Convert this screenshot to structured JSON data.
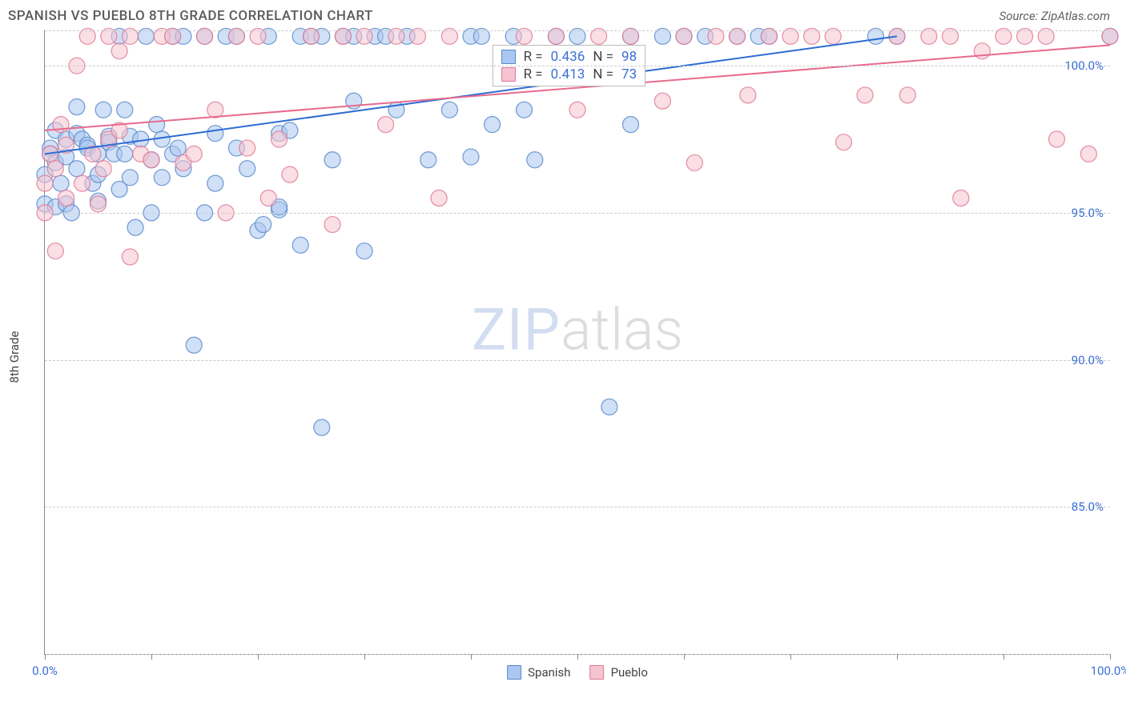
{
  "title": "SPANISH VS PUEBLO 8TH GRADE CORRELATION CHART",
  "source": "Source: ZipAtlas.com",
  "ylabel": "8th Grade",
  "watermark": {
    "part1": "ZIP",
    "part2": "atlas"
  },
  "chart": {
    "type": "scatter",
    "xlim": [
      0,
      100
    ],
    "ylim": [
      80,
      101.2
    ],
    "x_ticks": [
      0,
      10,
      20,
      30,
      40,
      50,
      60,
      70,
      80,
      90,
      100
    ],
    "x_tick_labels_shown": {
      "0": "0.0%",
      "100": "100.0%"
    },
    "y_gridlines": [
      80,
      85,
      90,
      95,
      100,
      101.2
    ],
    "y_tick_labels": {
      "85": "85.0%",
      "90": "90.0%",
      "95": "95.0%",
      "100": "100.0%"
    },
    "marker_radius": 10,
    "marker_opacity": 0.55,
    "marker_stroke_width": 1.3,
    "grid_color": "#cccccc",
    "axis_color": "#888888",
    "tick_label_color": "#3b6fd4",
    "background_color": "#ffffff",
    "series": [
      {
        "name": "Spanish",
        "color_fill": "#a9c7f0",
        "color_stroke": "#5a8ac9",
        "trend": {
          "x1": 0,
          "y1": 97.0,
          "x2": 80,
          "y2": 101.0,
          "color": "#2d6cd4",
          "width": 2
        },
        "stats": {
          "R": "0.436",
          "N": "98"
        },
        "points": [
          [
            0,
            95.3
          ],
          [
            0,
            96.3
          ],
          [
            0.5,
            97.2
          ],
          [
            0.5,
            97.0
          ],
          [
            1,
            95.2
          ],
          [
            1,
            96.7
          ],
          [
            1,
            97.8
          ],
          [
            1.5,
            96.0
          ],
          [
            2,
            97.5
          ],
          [
            2,
            96.9
          ],
          [
            2,
            95.3
          ],
          [
            2.5,
            95.0
          ],
          [
            3,
            97.7
          ],
          [
            3,
            98.6
          ],
          [
            3,
            96.5
          ],
          [
            3.5,
            97.5
          ],
          [
            4,
            97.3
          ],
          [
            4,
            97.2
          ],
          [
            4.5,
            96.0
          ],
          [
            5,
            95.4
          ],
          [
            5,
            96.3
          ],
          [
            5,
            97.0
          ],
          [
            5.5,
            98.5
          ],
          [
            6,
            97.6
          ],
          [
            6,
            97.4
          ],
          [
            6.5,
            97.0
          ],
          [
            7,
            101.0
          ],
          [
            7,
            95.8
          ],
          [
            7.5,
            97.0
          ],
          [
            7.5,
            98.5
          ],
          [
            8,
            96.2
          ],
          [
            8,
            97.6
          ],
          [
            8.5,
            94.5
          ],
          [
            9,
            97.5
          ],
          [
            9.5,
            101.0
          ],
          [
            10,
            95.0
          ],
          [
            10,
            96.8
          ],
          [
            10.5,
            98.0
          ],
          [
            11,
            97.5
          ],
          [
            11,
            96.2
          ],
          [
            12,
            101.0
          ],
          [
            12,
            97.0
          ],
          [
            12.5,
            97.2
          ],
          [
            13,
            101.0
          ],
          [
            13,
            96.5
          ],
          [
            14,
            90.5
          ],
          [
            15,
            101.0
          ],
          [
            15,
            95.0
          ],
          [
            16,
            97.7
          ],
          [
            16,
            96.0
          ],
          [
            17,
            101.0
          ],
          [
            18,
            101.0
          ],
          [
            18,
            97.2
          ],
          [
            19,
            96.5
          ],
          [
            20,
            94.4
          ],
          [
            20.5,
            94.6
          ],
          [
            21,
            101.0
          ],
          [
            22,
            95.1
          ],
          [
            22,
            97.7
          ],
          [
            22,
            95.2
          ],
          [
            23,
            97.8
          ],
          [
            24,
            101.0
          ],
          [
            24,
            93.9
          ],
          [
            25,
            101.0
          ],
          [
            26,
            101.0
          ],
          [
            26,
            87.7
          ],
          [
            27,
            96.8
          ],
          [
            28,
            101.0
          ],
          [
            29,
            98.8
          ],
          [
            29,
            101.0
          ],
          [
            30,
            93.7
          ],
          [
            31,
            101.0
          ],
          [
            32,
            101.0
          ],
          [
            33,
            98.5
          ],
          [
            34,
            101.0
          ],
          [
            36,
            96.8
          ],
          [
            38,
            98.5
          ],
          [
            40,
            101.0
          ],
          [
            40,
            96.9
          ],
          [
            41,
            101.0
          ],
          [
            42,
            98.0
          ],
          [
            44,
            101.0
          ],
          [
            45,
            98.5
          ],
          [
            46,
            96.8
          ],
          [
            48,
            101.0
          ],
          [
            50,
            101.0
          ],
          [
            53,
            88.4
          ],
          [
            55,
            101.0
          ],
          [
            55,
            98.0
          ],
          [
            58,
            101.0
          ],
          [
            60,
            101.0
          ],
          [
            62,
            101.0
          ],
          [
            65,
            101.0
          ],
          [
            67,
            101.0
          ],
          [
            68,
            101.0
          ],
          [
            78,
            101.0
          ],
          [
            80,
            101.0
          ],
          [
            100,
            101.0
          ]
        ]
      },
      {
        "name": "Pueblo",
        "color_fill": "#f5c4d0",
        "color_stroke": "#e07a96",
        "trend": {
          "x1": 0,
          "y1": 97.8,
          "x2": 100,
          "y2": 100.7,
          "color": "#e86a8c",
          "width": 2
        },
        "stats": {
          "R": "0.413",
          "N": "73"
        },
        "points": [
          [
            0,
            95.0
          ],
          [
            0,
            96.0
          ],
          [
            0.5,
            97.0
          ],
          [
            1,
            93.7
          ],
          [
            1,
            96.5
          ],
          [
            1.5,
            98.0
          ],
          [
            2,
            95.5
          ],
          [
            2,
            97.3
          ],
          [
            3,
            100.0
          ],
          [
            3.5,
            96.0
          ],
          [
            4,
            101.0
          ],
          [
            4.5,
            97.0
          ],
          [
            5,
            95.3
          ],
          [
            5.5,
            96.5
          ],
          [
            6,
            101.0
          ],
          [
            6,
            97.5
          ],
          [
            7,
            97.8
          ],
          [
            7,
            100.5
          ],
          [
            8,
            93.5
          ],
          [
            8,
            101.0
          ],
          [
            9,
            97.0
          ],
          [
            10,
            96.8
          ],
          [
            11,
            101.0
          ],
          [
            12,
            101.0
          ],
          [
            13,
            96.7
          ],
          [
            14,
            97.0
          ],
          [
            15,
            101.0
          ],
          [
            16,
            98.5
          ],
          [
            17,
            95.0
          ],
          [
            18,
            101.0
          ],
          [
            19,
            97.2
          ],
          [
            20,
            101.0
          ],
          [
            21,
            95.5
          ],
          [
            22,
            97.5
          ],
          [
            23,
            96.3
          ],
          [
            25,
            101.0
          ],
          [
            27,
            94.6
          ],
          [
            28,
            101.0
          ],
          [
            30,
            101.0
          ],
          [
            32,
            98.0
          ],
          [
            33,
            101.0
          ],
          [
            35,
            101.0
          ],
          [
            37,
            95.5
          ],
          [
            38,
            101.0
          ],
          [
            45,
            101.0
          ],
          [
            48,
            101.0
          ],
          [
            50,
            98.5
          ],
          [
            52,
            101.0
          ],
          [
            55,
            101.0
          ],
          [
            58,
            98.8
          ],
          [
            60,
            101.0
          ],
          [
            61,
            96.7
          ],
          [
            63,
            101.0
          ],
          [
            65,
            101.0
          ],
          [
            66,
            99.0
          ],
          [
            68,
            101.0
          ],
          [
            70,
            101.0
          ],
          [
            72,
            101.0
          ],
          [
            74,
            101.0
          ],
          [
            75,
            97.4
          ],
          [
            77,
            99.0
          ],
          [
            80,
            101.0
          ],
          [
            81,
            99.0
          ],
          [
            83,
            101.0
          ],
          [
            85,
            101.0
          ],
          [
            86,
            95.5
          ],
          [
            88,
            100.5
          ],
          [
            90,
            101.0
          ],
          [
            92,
            101.0
          ],
          [
            94,
            101.0
          ],
          [
            95,
            97.5
          ],
          [
            98,
            97.0
          ],
          [
            100,
            101.0
          ]
        ]
      }
    ]
  },
  "stats_labels": {
    "R": "R =",
    "N": "N ="
  },
  "legend": {
    "spanish": "Spanish",
    "pueblo": "Pueblo"
  }
}
